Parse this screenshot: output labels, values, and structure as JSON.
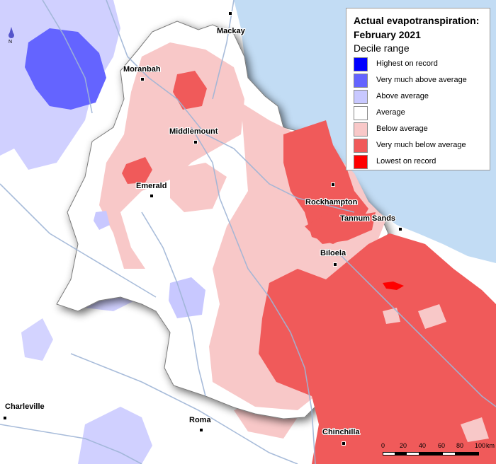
{
  "legend": {
    "title_line1": "Actual evapotranspiration:",
    "title_line2": "February 2021",
    "subtitle": "Decile range",
    "items": [
      {
        "label": "Highest on record",
        "color": "#0000ff"
      },
      {
        "label": "Very much above average",
        "color": "#6464ff"
      },
      {
        "label": "Above average",
        "color": "#c8c8ff"
      },
      {
        "label": "Average",
        "color": "#ffffff"
      },
      {
        "label": "Below average",
        "color": "#f8c8c8"
      },
      {
        "label": "Very much below average",
        "color": "#f05a5a"
      },
      {
        "label": "Lowest on record",
        "color": "#ff0000"
      }
    ]
  },
  "towns": [
    {
      "name": "Mackay"
    },
    {
      "name": "Moranbah"
    },
    {
      "name": "Middlemount"
    },
    {
      "name": "Emerald"
    },
    {
      "name": "Rockhampton"
    },
    {
      "name": "Tannum Sands"
    },
    {
      "name": "Biloela"
    },
    {
      "name": "Charleville"
    },
    {
      "name": "Roma"
    },
    {
      "name": "Chinchilla"
    }
  ],
  "scale": {
    "labels": [
      "0",
      "20",
      "40",
      "60",
      "80",
      "100"
    ],
    "unit": "km"
  },
  "north_label": "N",
  "colors": {
    "ocean": "#c2dcf4",
    "river": "#9fb5d6"
  }
}
